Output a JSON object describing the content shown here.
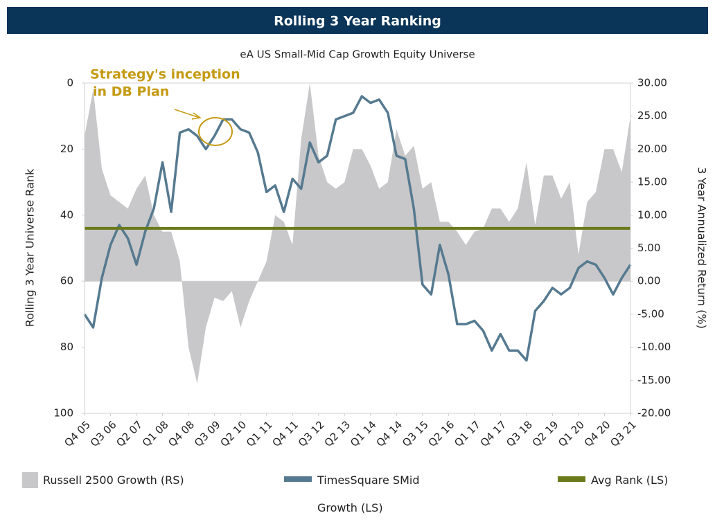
{
  "chart_data": {
    "type": "area-line",
    "title": "Rolling 3 Year Ranking",
    "subtitle": "eA US Small-Mid Cap Growth Equity Universe",
    "ylabel": "Rolling 3 Year Universe Rank",
    "y2label": "3 Year Annualized Return (%)",
    "annotation": [
      "Strategy's inception",
      "in DB Plan"
    ],
    "categories": [
      "Q4 05",
      null,
      null,
      "Q3 06",
      null,
      null,
      "Q2 07",
      null,
      null,
      "Q1 08",
      null,
      null,
      "Q4 08",
      null,
      null,
      "Q3 09",
      null,
      null,
      "Q2 10",
      null,
      null,
      "Q1 11",
      null,
      null,
      "Q4 11",
      null,
      null,
      "Q3 12",
      null,
      null,
      "Q2 13",
      null,
      null,
      "Q1 14",
      null,
      null,
      "Q4 14",
      null,
      null,
      "Q3 15",
      null,
      null,
      "Q2 16",
      null,
      null,
      "Q1 17",
      null,
      null,
      "Q4 17",
      null,
      null,
      "Q3 18",
      null,
      null,
      "Q2 19",
      null,
      null,
      "Q1 20",
      null,
      null,
      "Q4 20",
      null,
      null,
      "Q3 21"
    ],
    "ylim": [
      0,
      100
    ],
    "yticks": [
      0,
      20,
      40,
      60,
      80,
      100
    ],
    "yinverted": true,
    "y2lim": [
      -20,
      30
    ],
    "y2ticks": [
      {
        "value": 30,
        "label": "30.00"
      },
      {
        "value": 25,
        "label": "25.00"
      },
      {
        "value": 20,
        "label": "20.00"
      },
      {
        "value": 15,
        "label": "15.00"
      },
      {
        "value": 10,
        "label": "10.00"
      },
      {
        "value": 5,
        "label": "5.00"
      },
      {
        "value": 0,
        "label": "0.00"
      },
      {
        "value": -5,
        "label": "-5.00"
      },
      {
        "value": -10,
        "label": "-10.00"
      },
      {
        "value": -15,
        "label": "-15.00"
      },
      {
        "value": -20,
        "label": "-20.00"
      }
    ],
    "grid": false,
    "series": [
      {
        "name": "Russell 2500 Growth (RS)",
        "color": "#c8c7c9",
        "kind": "area",
        "axis": "y2",
        "values": [
          22,
          29,
          17,
          13,
          12,
          11,
          14,
          16,
          10,
          7.5,
          7.5,
          3,
          -10,
          -15.5,
          -7,
          -2.5,
          -3,
          -1.5,
          -7,
          -3,
          0,
          3,
          10,
          9,
          5.5,
          21.5,
          30,
          19,
          15,
          14,
          15,
          20,
          20,
          17.5,
          14,
          15,
          23,
          19,
          20.5,
          14,
          15,
          9,
          9,
          7.5,
          5.5,
          7.5,
          8,
          11,
          11,
          9,
          11,
          18,
          8.5,
          16,
          16,
          12.5,
          15,
          4,
          12,
          13.5,
          20,
          20,
          16.5,
          25
        ]
      },
      {
        "name": "TimesSquare SMid Growth (LS)",
        "color": "#557a90",
        "kind": "line",
        "values": [
          70,
          74,
          59,
          49,
          43,
          47,
          55,
          45,
          38,
          24,
          39,
          15,
          14,
          16,
          20,
          16,
          11,
          11,
          14,
          15,
          21,
          33,
          31,
          39,
          29,
          32,
          18,
          24,
          22,
          11,
          10,
          9,
          4,
          6,
          5,
          9,
          22,
          23,
          38,
          61,
          64,
          49,
          58,
          73,
          73,
          72,
          75,
          81,
          76,
          81,
          81,
          84,
          69,
          66,
          62,
          64,
          62,
          56,
          54,
          55,
          59,
          64,
          59,
          55
        ]
      },
      {
        "name": "Avg Rank (LS)",
        "color": "#6b7a1a",
        "kind": "hline",
        "value": 44
      }
    ]
  }
}
